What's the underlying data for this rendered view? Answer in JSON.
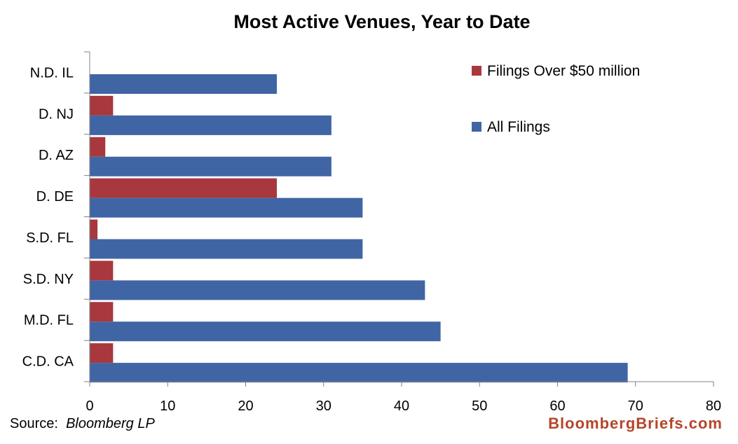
{
  "chart_data": {
    "type": "bar",
    "orientation": "horizontal",
    "title": "Most Active Venues, Year to Date",
    "categories": [
      "N.D. IL",
      "D. NJ",
      "D. AZ",
      "D. DE",
      "S.D. FL",
      "S.D. NY",
      "M.D. FL",
      "C.D. CA"
    ],
    "series": [
      {
        "name": "Filings Over $50 million",
        "color": "#a8383d",
        "values": [
          0,
          3,
          2,
          24,
          1,
          3,
          3,
          3
        ]
      },
      {
        "name": "All Filings",
        "color": "#4065a5",
        "values": [
          24,
          31,
          31,
          35,
          35,
          43,
          45,
          69
        ]
      }
    ],
    "xlim": [
      0,
      80
    ],
    "xticks": [
      0,
      10,
      20,
      30,
      40,
      50,
      60,
      70,
      80
    ],
    "xlabel": "",
    "ylabel": "",
    "grid": false,
    "legend_placement": "top-right"
  },
  "footer": {
    "source_prefix": "Source:",
    "source_name": "Bloomberg LP",
    "brand": "BloombergBriefs.com"
  }
}
